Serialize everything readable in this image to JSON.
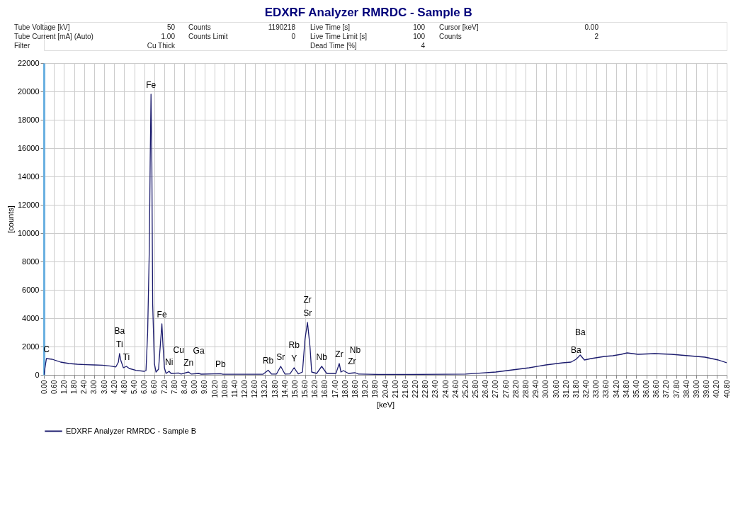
{
  "chart_data": {
    "type": "line",
    "title": "EDXRF Analyzer RMRDC - Sample B",
    "xlabel": "[keV]",
    "ylabel": "[counts]",
    "xlim": [
      0,
      40.8
    ],
    "ylim": [
      0,
      22000
    ],
    "yticks": [
      0,
      2000,
      4000,
      6000,
      8000,
      10000,
      12000,
      14000,
      16000,
      18000,
      20000,
      22000
    ],
    "xticks": [
      {
        "value": 0,
        "label": "0.00"
      },
      {
        "value": 0.6,
        "label": "0.60"
      },
      {
        "value": 1.2,
        "label": "1.20"
      },
      {
        "value": 1.8,
        "label": "1.80"
      },
      {
        "value": 2.4,
        "label": "2.40"
      },
      {
        "value": 3,
        "label": "3.00"
      },
      {
        "value": 3.6,
        "label": "3.60"
      },
      {
        "value": 4.2,
        "label": "4.20"
      },
      {
        "value": 4.8,
        "label": "4.80"
      },
      {
        "value": 5.4,
        "label": "5.40"
      },
      {
        "value": 6,
        "label": "6.00"
      },
      {
        "value": 6.6,
        "label": "6.60"
      },
      {
        "value": 7.2,
        "label": "7.20"
      },
      {
        "value": 7.8,
        "label": "7.80"
      },
      {
        "value": 8.4,
        "label": "8.40"
      },
      {
        "value": 9,
        "label": "9.00"
      },
      {
        "value": 9.6,
        "label": "9.60"
      },
      {
        "value": 10.2,
        "label": "10.20"
      },
      {
        "value": 10.8,
        "label": "10.80"
      },
      {
        "value": 11.4,
        "label": "11.40"
      },
      {
        "value": 12,
        "label": "12.00"
      },
      {
        "value": 12.6,
        "label": "12.60"
      },
      {
        "value": 13.2,
        "label": "13.20"
      },
      {
        "value": 13.8,
        "label": "13.80"
      },
      {
        "value": 14.4,
        "label": "14.40"
      },
      {
        "value": 15,
        "label": "15.00"
      },
      {
        "value": 15.6,
        "label": "15.60"
      },
      {
        "value": 16.2,
        "label": "16.20"
      },
      {
        "value": 16.8,
        "label": "16.80"
      },
      {
        "value": 17.4,
        "label": "17.40"
      },
      {
        "value": 18,
        "label": "18.00"
      },
      {
        "value": 18.6,
        "label": "18.60"
      },
      {
        "value": 19.2,
        "label": "19.20"
      },
      {
        "value": 19.8,
        "label": "19.80"
      },
      {
        "value": 20.4,
        "label": "20.40"
      },
      {
        "value": 21,
        "label": "21.00"
      },
      {
        "value": 21.6,
        "label": "21.60"
      },
      {
        "value": 22.2,
        "label": "22.20"
      },
      {
        "value": 22.8,
        "label": "22.80"
      },
      {
        "value": 23.4,
        "label": "23.40"
      },
      {
        "value": 24,
        "label": "24.00"
      },
      {
        "value": 24.6,
        "label": "24.60"
      },
      {
        "value": 25.2,
        "label": "25.20"
      },
      {
        "value": 25.8,
        "label": "25.80"
      },
      {
        "value": 26.4,
        "label": "26.40"
      },
      {
        "value": 27,
        "label": "27.00"
      },
      {
        "value": 27.6,
        "label": "27.60"
      },
      {
        "value": 28.2,
        "label": "28.20"
      },
      {
        "value": 28.8,
        "label": "28.80"
      },
      {
        "value": 29.4,
        "label": "29.40"
      },
      {
        "value": 30,
        "label": "30.00"
      },
      {
        "value": 30.6,
        "label": "30.60"
      },
      {
        "value": 31.2,
        "label": "31.20"
      },
      {
        "value": 31.8,
        "label": "31.80"
      },
      {
        "value": 32.4,
        "label": "32.40"
      },
      {
        "value": 33,
        "label": "33.00"
      },
      {
        "value": 33.6,
        "label": "33.60"
      },
      {
        "value": 34.2,
        "label": "34.20"
      },
      {
        "value": 34.8,
        "label": "34.80"
      },
      {
        "value": 35.4,
        "label": "35.40"
      },
      {
        "value": 36,
        "label": "36.00"
      },
      {
        "value": 36.6,
        "label": "36.60"
      },
      {
        "value": 37.2,
        "label": "37.20"
      },
      {
        "value": 37.8,
        "label": "37.80"
      },
      {
        "value": 38.4,
        "label": "38.40"
      },
      {
        "value": 39,
        "label": "39.00"
      },
      {
        "value": 39.6,
        "label": "39.60"
      },
      {
        "value": 40.2,
        "label": "40.20"
      },
      {
        "value": 40.8,
        "label": "40.80"
      }
    ],
    "grid": true,
    "legend": "bottom",
    "series": [
      {
        "name": "EDXRF Analyzer RMRDC - Sample B",
        "color": "#1c1c6e",
        "x": [
          0,
          0.15,
          0.5,
          1.0,
          1.5,
          2.0,
          2.5,
          3.0,
          3.5,
          4.0,
          4.3,
          4.45,
          4.52,
          4.6,
          4.75,
          4.93,
          5.1,
          5.5,
          6.0,
          6.1,
          6.2,
          6.3,
          6.35,
          6.4,
          6.45,
          6.5,
          6.6,
          6.7,
          6.85,
          6.95,
          7.05,
          7.12,
          7.2,
          7.3,
          7.48,
          7.6,
          8.05,
          8.2,
          8.64,
          8.8,
          9.25,
          9.4,
          10.55,
          10.7,
          12.5,
          13.1,
          13.4,
          13.6,
          13.9,
          14.15,
          14.4,
          14.7,
          14.95,
          15.2,
          15.45,
          15.6,
          15.75,
          15.9,
          16.0,
          16.3,
          16.6,
          16.9,
          17.45,
          17.65,
          17.75,
          17.9,
          18.2,
          18.6,
          18.8,
          19.4,
          20.0,
          22.0,
          24.0,
          25.2,
          26.0,
          27.0,
          28.0,
          29.0,
          30.0,
          31.0,
          31.5,
          31.8,
          32.05,
          32.3,
          32.7,
          33.5,
          34.0,
          34.5,
          34.85,
          35.5,
          36.5,
          37.5,
          38.5,
          39.5,
          40.3,
          40.8
        ],
        "values": [
          0,
          1150,
          1100,
          900,
          800,
          750,
          720,
          700,
          680,
          620,
          560,
          900,
          1500,
          1000,
          500,
          600,
          450,
          320,
          250,
          300,
          3000,
          9000,
          15000,
          19800,
          15000,
          5000,
          800,
          200,
          400,
          2000,
          3600,
          2000,
          500,
          100,
          250,
          100,
          130,
          60,
          200,
          60,
          100,
          50,
          80,
          40,
          40,
          50,
          330,
          60,
          60,
          600,
          60,
          70,
          500,
          70,
          200,
          2500,
          3700,
          2000,
          200,
          100,
          600,
          100,
          100,
          800,
          200,
          300,
          100,
          150,
          60,
          40,
          30,
          30,
          40,
          60,
          120,
          200,
          350,
          500,
          700,
          850,
          900,
          1100,
          1400,
          1050,
          1150,
          1300,
          1350,
          1450,
          1550,
          1450,
          1500,
          1450,
          1350,
          1250,
          1050,
          850
        ]
      }
    ],
    "annotations": [
      "Tube Voltage [kV]",
      "50",
      "Tube Current [mA] (Auto)",
      "1.00",
      "Filter",
      "Cu Thick",
      "Counts",
      "1190218",
      "Counts Limit",
      "0",
      "Live Time [s]",
      "100",
      "Live Time Limit [s]",
      "100",
      "Dead Time [%]",
      "4",
      "Cursor [keV]",
      "0.00",
      "Counts",
      "2",
      {
        "text": "C",
        "x": 0.15,
        "y": 1150
      },
      {
        "text": "Ba",
        "x": 4.52,
        "y": 1500
      },
      {
        "text": "Ti",
        "x": 4.52,
        "y": 1500
      },
      {
        "text": "Ti",
        "x": 4.93,
        "y": 600
      },
      {
        "text": "Fe",
        "x": 6.4,
        "y": 19800
      },
      {
        "text": "Fe",
        "x": 7.05,
        "y": 3600
      },
      {
        "text": "Ni",
        "x": 7.48,
        "y": 250
      },
      {
        "text": "Cu",
        "x": 8.05,
        "y": 130
      },
      {
        "text": "Zn",
        "x": 8.64,
        "y": 200
      },
      {
        "text": "Ga",
        "x": 9.25,
        "y": 100
      },
      {
        "text": "Pb",
        "x": 10.55,
        "y": 80
      },
      {
        "text": "Rb",
        "x": 13.4,
        "y": 330
      },
      {
        "text": "Sr",
        "x": 14.15,
        "y": 600
      },
      {
        "text": "Rb",
        "x": 14.95,
        "y": 500
      },
      {
        "text": "Y",
        "x": 14.95,
        "y": 500
      },
      {
        "text": "Zr",
        "x": 15.75,
        "y": 3700
      },
      {
        "text": "Sr",
        "x": 15.75,
        "y": 3700
      },
      {
        "text": "Nb",
        "x": 16.6,
        "y": 600
      },
      {
        "text": "Zr",
        "x": 17.65,
        "y": 800
      },
      {
        "text": "Zr",
        "x": 17.9,
        "y": 300
      },
      {
        "text": "Nb",
        "x": 18.6,
        "y": 150
      },
      {
        "text": "Ba",
        "x": 31.8,
        "y": 1100
      },
      {
        "text": "Ba",
        "x": 32.05,
        "y": 1400
      }
    ]
  }
}
